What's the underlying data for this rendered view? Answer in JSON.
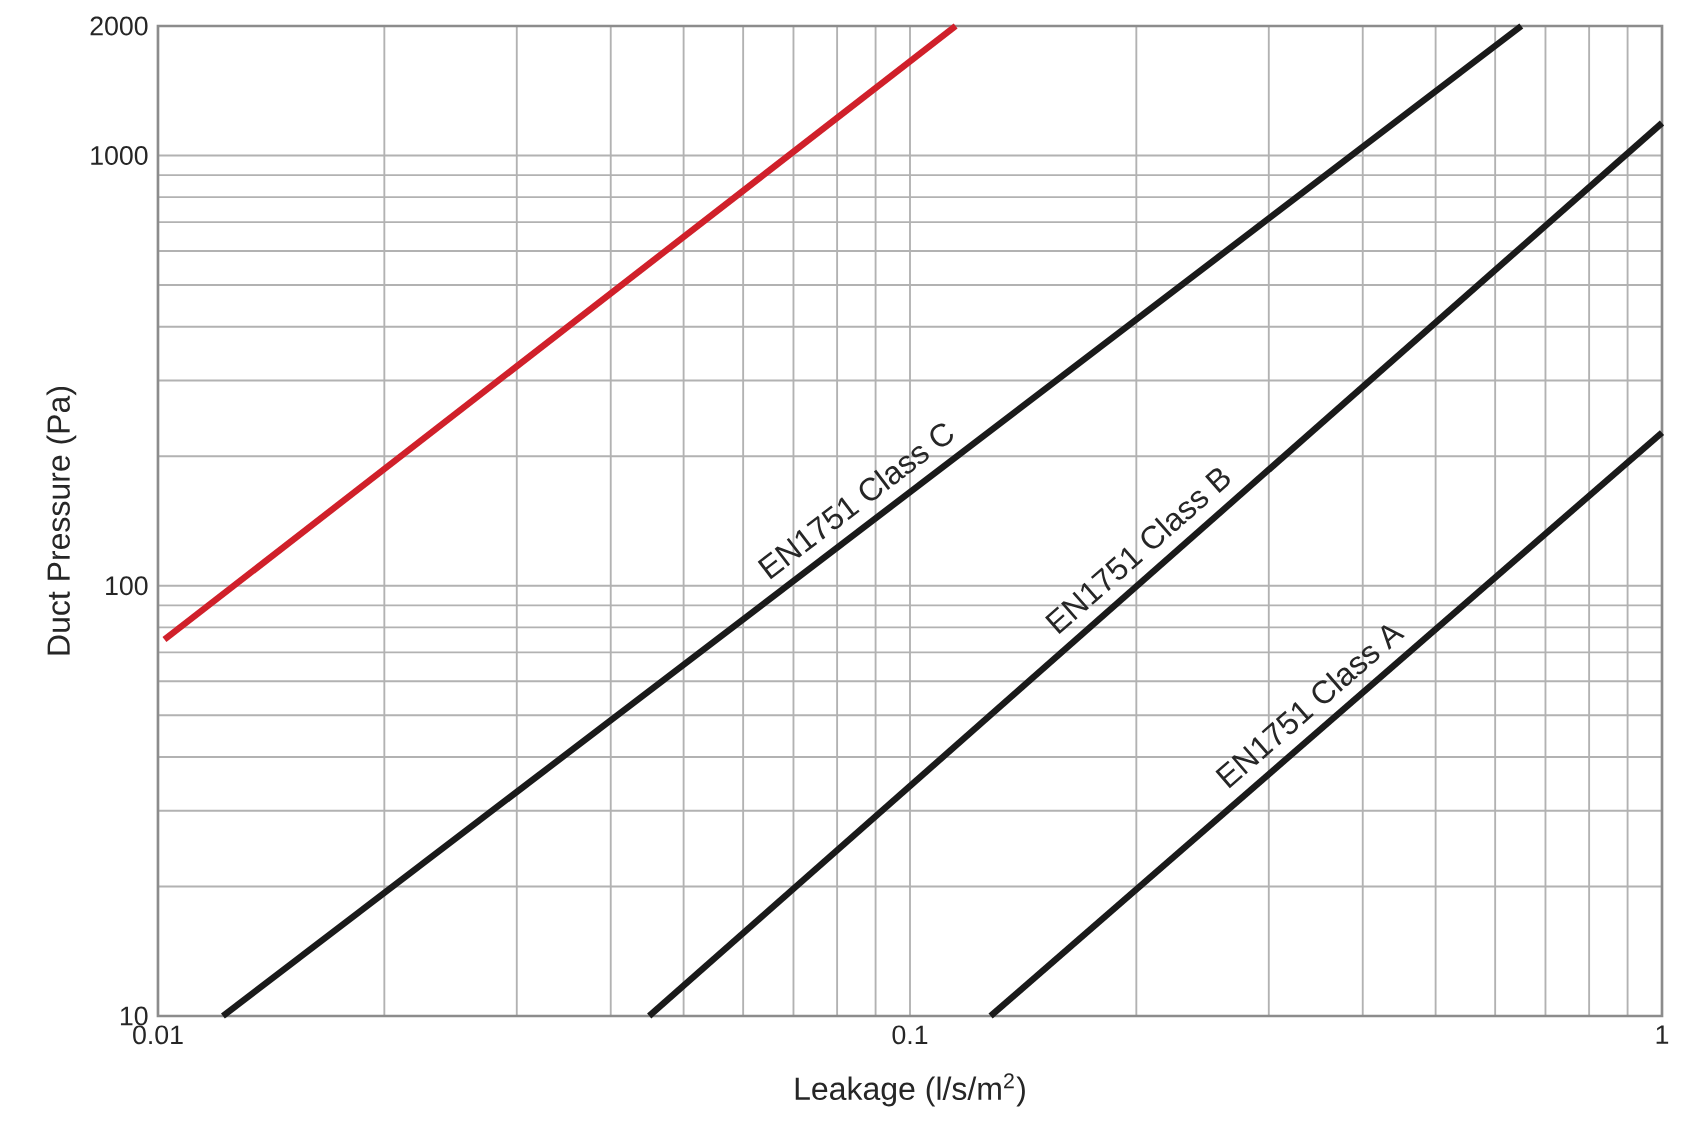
{
  "chart_data": {
    "type": "line",
    "xlabel": "Leakage (l/s/m$^{2}$)",
    "ylabel": "Duct Pressure (Pa)",
    "log": "xy",
    "grid": true,
    "marker": "none",
    "line_style": "solid",
    "xlim": [
      0.01,
      1
    ],
    "ylim": [
      10,
      2000
    ],
    "xticks": [
      0.01,
      0.1,
      1
    ],
    "yticks": [
      10,
      100,
      1000,
      2000
    ],
    "series": [
      {
        "color": "#d0202a",
        "x": [
          0.0102,
          0.115
        ],
        "values": [
          75,
          2000
        ]
      },
      {
        "name": "EN1751 Class C",
        "color": "#1a1a1a",
        "x": [
          0.0122,
          0.65
        ],
        "values": [
          10,
          2000
        ]
      },
      {
        "name": "EN1751 Class B",
        "color": "#1a1a1a",
        "x": [
          0.045,
          1
        ],
        "values": [
          10,
          1190
        ]
      },
      {
        "name": "EN1751 Class A",
        "color": "#1a1a1a",
        "x": [
          0.128,
          1
        ],
        "values": [
          10,
          227
        ]
      }
    ]
  }
}
